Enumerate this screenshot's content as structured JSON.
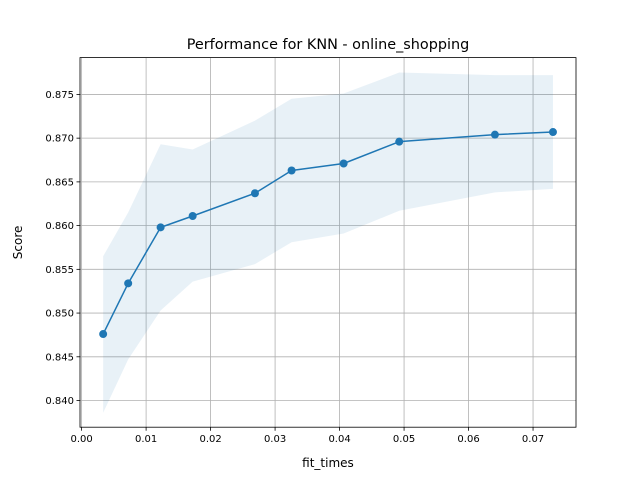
{
  "chart_data": {
    "type": "line",
    "title": "Performance for KNN - online_shopping",
    "xlabel": "fit_times",
    "ylabel": "Score",
    "xlim": [
      -0.00025,
      0.07666
    ],
    "ylim": [
      0.83695,
      0.87921
    ],
    "grid": true,
    "xticks": [
      0.0,
      0.01,
      0.02,
      0.03,
      0.04,
      0.05,
      0.06,
      0.07
    ],
    "xtick_labels": [
      "0.00",
      "0.01",
      "0.02",
      "0.03",
      "0.04",
      "0.05",
      "0.06",
      "0.07"
    ],
    "yticks": [
      0.84,
      0.845,
      0.85,
      0.855,
      0.86,
      0.865,
      0.87,
      0.875
    ],
    "ytick_labels": [
      "0.840",
      "0.845",
      "0.850",
      "0.855",
      "0.860",
      "0.865",
      "0.870",
      "0.875"
    ],
    "series": [
      {
        "color": "#1f77b4",
        "x": [
          0.00334,
          0.00722,
          0.01225,
          0.01722,
          0.02688,
          0.03256,
          0.04063,
          0.04925,
          0.06409,
          0.07309
        ],
        "y": [
          0.8476,
          0.8534,
          0.8598,
          0.8611,
          0.8637,
          0.8663,
          0.8671,
          0.8696,
          0.8704,
          0.8707
        ],
        "band_upper": [
          0.8565,
          0.8615,
          0.8693,
          0.8687,
          0.872,
          0.8745,
          0.8751,
          0.8775,
          0.8772,
          0.8772
        ],
        "band_lower": [
          0.8386,
          0.8447,
          0.8503,
          0.8536,
          0.8556,
          0.8581,
          0.8591,
          0.8617,
          0.8638,
          0.8642
        ],
        "band_color": "#1f77b4"
      }
    ]
  }
}
